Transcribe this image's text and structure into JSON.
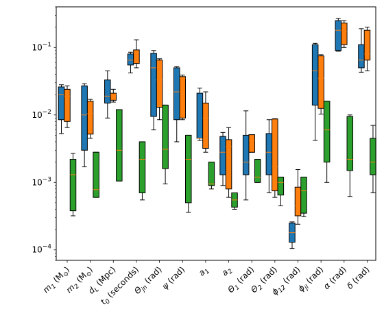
{
  "chart_data": {
    "type": "boxplot",
    "title": "",
    "xlabel": "",
    "ylabel": "",
    "yscale": "log",
    "ylim": [
      7e-05,
      0.4
    ],
    "y_ticks": [
      {
        "value": 0.0001,
        "base": "10",
        "exp": "−4"
      },
      {
        "value": 0.001,
        "base": "10",
        "exp": "−3"
      },
      {
        "value": 0.01,
        "base": "10",
        "exp": "−2"
      },
      {
        "value": 0.1,
        "base": "10",
        "exp": "−1"
      }
    ],
    "grid": false,
    "colors": {
      "s1": "#1f77b4",
      "s2": "#ff7f0e",
      "s3": "#2ca02c",
      "median": "#ff7f0e"
    },
    "categories": [
      {
        "main": "m",
        "sub": "1",
        "unit": " (M",
        "unitsub": "⊙",
        "close": ")"
      },
      {
        "main": "m",
        "sub": "2",
        "unit": " (M",
        "unitsub": "⊙",
        "close": ")"
      },
      {
        "main": "d",
        "sub": "L",
        "unit": " (Mpc)",
        "unitsub": "",
        "close": ""
      },
      {
        "main": "t",
        "sub": "0",
        "unit": " (seconds)",
        "unitsub": "",
        "close": ""
      },
      {
        "main": "Θ",
        "sub": "jn",
        "unit": " (rad)",
        "unitsub": "",
        "close": ""
      },
      {
        "main": "ψ",
        "sub": "",
        "unit": " (rad)",
        "unitsub": "",
        "close": ""
      },
      {
        "main": "a",
        "sub": "1",
        "unit": "",
        "unitsub": "",
        "close": ""
      },
      {
        "main": "a",
        "sub": "2",
        "unit": "",
        "unitsub": "",
        "close": ""
      },
      {
        "main": "Θ",
        "sub": "1",
        "unit": " (rad)",
        "unitsub": "",
        "close": ""
      },
      {
        "main": "Θ",
        "sub": "2",
        "unit": " (rad)",
        "unitsub": "",
        "close": ""
      },
      {
        "main": "ϕ",
        "sub": "12",
        "unit": " (rad)",
        "unitsub": "",
        "close": ""
      },
      {
        "main": "ϕ",
        "sub": "jl",
        "unit": " (rad)",
        "unitsub": "",
        "close": ""
      },
      {
        "main": "α",
        "sub": "",
        "unit": " (rad)",
        "unitsub": "",
        "close": ""
      },
      {
        "main": "δ",
        "sub": "",
        "unit": " (rad)",
        "unitsub": "",
        "close": ""
      }
    ],
    "series": [
      {
        "color": "#1f77b4",
        "boxes": [
          {
            "cat": 0,
            "wlo": 0.0053,
            "q1": 0.0085,
            "med": 0.02,
            "q3": 0.026,
            "whi": 0.028
          },
          {
            "cat": 1,
            "wlo": 0.0017,
            "q1": 0.003,
            "med": 0.01,
            "q3": 0.027,
            "whi": 0.029
          },
          {
            "cat": 2,
            "wlo": 0.009,
            "q1": 0.015,
            "med": 0.019,
            "q3": 0.033,
            "whi": 0.045
          },
          {
            "cat": 3,
            "wlo": 0.042,
            "q1": 0.055,
            "med": 0.065,
            "q3": 0.08,
            "whi": 0.085
          },
          {
            "cat": 4,
            "wlo": 0.006,
            "q1": 0.0095,
            "med": 0.05,
            "q3": 0.082,
            "whi": 0.09
          },
          {
            "cat": 5,
            "wlo": 0.004,
            "q1": 0.0085,
            "med": 0.022,
            "q3": 0.05,
            "whi": 0.052
          },
          {
            "cat": 6,
            "wlo": 0.0042,
            "q1": 0.0045,
            "med": 0.0045,
            "q3": 0.021,
            "whi": 0.025
          },
          {
            "cat": 7,
            "wlo": 0.0009,
            "q1": 0.0013,
            "med": 0.0028,
            "q3": 0.0048,
            "whi": 0.0055
          },
          {
            "cat": 8,
            "wlo": 0.00055,
            "q1": 0.0013,
            "med": 0.002,
            "q3": 0.005,
            "whi": 0.0115
          },
          {
            "cat": 9,
            "wlo": 0.0007,
            "q1": 0.0013,
            "med": 0.0028,
            "q3": 0.0053,
            "whi": 0.0085
          },
          {
            "cat": 10,
            "wlo": 0.000105,
            "q1": 0.00013,
            "med": 0.00018,
            "q3": 0.00025,
            "whi": 0.00026
          },
          {
            "cat": 11,
            "wlo": 0.0042,
            "q1": 0.014,
            "med": 0.045,
            "q3": 0.11,
            "whi": 0.115
          },
          {
            "cat": 12,
            "wlo": 0.088,
            "q1": 0.09,
            "med": 0.18,
            "q3": 0.25,
            "whi": 0.27
          },
          {
            "cat": 13,
            "wlo": 0.043,
            "q1": 0.05,
            "med": 0.065,
            "q3": 0.11,
            "whi": 0.19
          }
        ]
      },
      {
        "color": "#ff7f0e",
        "boxes": [
          {
            "cat": 0,
            "wlo": 0.0065,
            "q1": 0.008,
            "med": 0.019,
            "q3": 0.024,
            "whi": 0.027
          },
          {
            "cat": 1,
            "wlo": 0.0045,
            "q1": 0.0052,
            "med": 0.0105,
            "q3": 0.016,
            "whi": 0.017
          },
          {
            "cat": 2,
            "wlo": 0.0155,
            "q1": 0.0165,
            "med": 0.02,
            "q3": 0.021,
            "whi": 0.024
          },
          {
            "cat": 3,
            "wlo": 0.05,
            "q1": 0.058,
            "med": 0.06,
            "q3": 0.092,
            "whi": 0.13
          },
          {
            "cat": 4,
            "wlo": 0.0085,
            "q1": 0.013,
            "med": 0.033,
            "q3": 0.065,
            "whi": 0.068
          },
          {
            "cat": 5,
            "wlo": 0.0085,
            "q1": 0.009,
            "med": 0.035,
            "q3": 0.037,
            "whi": 0.039
          },
          {
            "cat": 6,
            "wlo": 0.0028,
            "q1": 0.0032,
            "med": 0.009,
            "q3": 0.015,
            "whi": 0.022
          },
          {
            "cat": 7,
            "wlo": 0.0006,
            "q1": 0.0008,
            "med": 0.0034,
            "q3": 0.0043,
            "whi": 0.0065
          },
          {
            "cat": 8,
            "wlo": 0.0028,
            "q1": 0.0028,
            "med": 0.0042,
            "q3": 0.0051,
            "whi": 0.0051
          },
          {
            "cat": 9,
            "wlo": 0.0006,
            "q1": 0.00075,
            "med": 0.0017,
            "q3": 0.0087,
            "whi": 0.0088
          },
          {
            "cat": 10,
            "wlo": 0.00024,
            "q1": 0.00032,
            "med": 0.00045,
            "q3": 0.00085,
            "whi": 0.00155
          },
          {
            "cat": 11,
            "wlo": 0.0103,
            "q1": 0.0125,
            "med": 0.035,
            "q3": 0.075,
            "whi": 0.078
          },
          {
            "cat": 12,
            "wlo": 0.1,
            "q1": 0.11,
            "med": 0.17,
            "q3": 0.23,
            "whi": 0.25
          },
          {
            "cat": 13,
            "wlo": 0.045,
            "q1": 0.065,
            "med": 0.08,
            "q3": 0.18,
            "whi": 0.2
          }
        ]
      },
      {
        "color": "#2ca02c",
        "boxes": [
          {
            "cat": 0,
            "wlo": 0.00032,
            "q1": 0.00038,
            "med": 0.0013,
            "q3": 0.0022,
            "whi": 0.0027
          },
          {
            "cat": 1,
            "wlo": 0.0006,
            "q1": 0.0006,
            "med": 0.00078,
            "q3": 0.0028,
            "whi": 0.0028
          },
          {
            "cat": 2,
            "wlo": 0.00105,
            "q1": 0.00105,
            "med": 0.003,
            "q3": 0.012,
            "whi": 0.012
          },
          {
            "cat": 3,
            "wlo": 0.00055,
            "q1": 0.0007,
            "med": 0.0022,
            "q3": 0.004,
            "whi": 0.004
          },
          {
            "cat": 4,
            "wlo": 0.00095,
            "q1": 0.0016,
            "med": 0.0031,
            "q3": 0.014,
            "whi": 0.014
          },
          {
            "cat": 5,
            "wlo": 0.00036,
            "q1": 0.0005,
            "med": 0.0022,
            "q3": 0.005,
            "whi": 0.005
          },
          {
            "cat": 6,
            "wlo": 0.0008,
            "q1": 0.0009,
            "med": 0.00095,
            "q3": 0.002,
            "whi": 0.002
          },
          {
            "cat": 7,
            "wlo": 0.0004,
            "q1": 0.00043,
            "med": 0.00055,
            "q3": 0.0007,
            "whi": 0.0007
          },
          {
            "cat": 8,
            "wlo": 0.001,
            "q1": 0.001,
            "med": 0.0012,
            "q3": 0.0022,
            "whi": 0.0022
          },
          {
            "cat": 9,
            "wlo": 0.00045,
            "q1": 0.00065,
            "med": 0.001,
            "q3": 0.0012,
            "whi": 0.0012
          },
          {
            "cat": 10,
            "wlo": 0.00031,
            "q1": 0.00035,
            "med": 0.00075,
            "q3": 0.0012,
            "whi": 0.0012
          },
          {
            "cat": 11,
            "wlo": 0.001,
            "q1": 0.002,
            "med": 0.006,
            "q3": 0.016,
            "whi": 0.016
          },
          {
            "cat": 12,
            "wlo": 0.00062,
            "q1": 0.0015,
            "med": 0.0022,
            "q3": 0.0095,
            "whi": 0.01
          },
          {
            "cat": 13,
            "wlo": 0.0007,
            "q1": 0.0013,
            "med": 0.002,
            "q3": 0.0045,
            "whi": 0.007
          }
        ]
      }
    ]
  }
}
